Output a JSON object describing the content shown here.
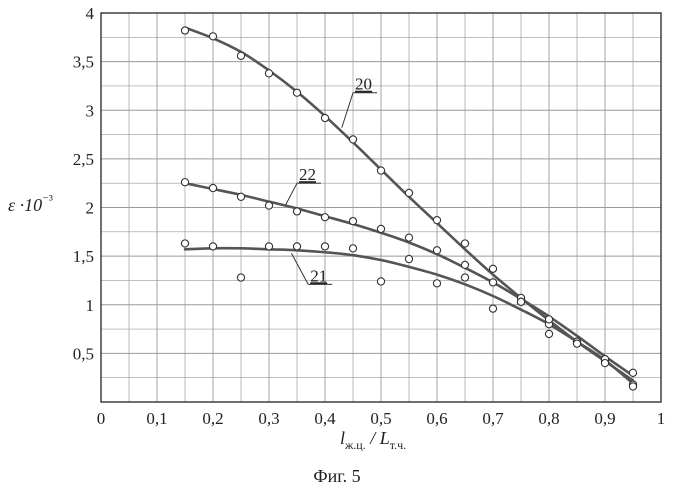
{
  "caption": "Фиг. 5",
  "chart_data": {
    "type": "scatter",
    "title": "",
    "ylabel": "ε ·10⁻³",
    "xlabel": "lж.ц. / Lт.ч.",
    "xlim": [
      0,
      1
    ],
    "ylim": [
      0,
      4
    ],
    "xticks": [
      "0",
      "0,1",
      "0,2",
      "0,3",
      "0,4",
      "0,5",
      "0,6",
      "0,7",
      "0,8",
      "0,9",
      "1"
    ],
    "yticks": [
      "0,5",
      "1",
      "1,5",
      "2",
      "2,5",
      "3",
      "3,5",
      "4"
    ],
    "grid": true,
    "series": [
      {
        "name": "20",
        "color": "#555555",
        "points": [
          [
            0.15,
            3.82
          ],
          [
            0.2,
            3.76
          ],
          [
            0.25,
            3.56
          ],
          [
            0.3,
            3.38
          ],
          [
            0.35,
            3.18
          ],
          [
            0.4,
            2.92
          ],
          [
            0.45,
            2.7
          ],
          [
            0.5,
            2.38
          ],
          [
            0.55,
            2.15
          ],
          [
            0.6,
            1.87
          ],
          [
            0.65,
            1.63
          ],
          [
            0.7,
            1.37
          ],
          [
            0.75,
            1.07
          ],
          [
            0.8,
            0.8
          ],
          [
            0.85,
            0.62
          ],
          [
            0.9,
            0.42
          ],
          [
            0.95,
            0.18
          ]
        ],
        "curve": [
          [
            0.15,
            3.85
          ],
          [
            0.2,
            3.74
          ],
          [
            0.25,
            3.6
          ],
          [
            0.3,
            3.41
          ],
          [
            0.35,
            3.19
          ],
          [
            0.4,
            2.94
          ],
          [
            0.45,
            2.67
          ],
          [
            0.5,
            2.39
          ],
          [
            0.55,
            2.11
          ],
          [
            0.6,
            1.84
          ],
          [
            0.65,
            1.57
          ],
          [
            0.7,
            1.31
          ],
          [
            0.75,
            1.07
          ],
          [
            0.8,
            0.84
          ],
          [
            0.85,
            0.62
          ],
          [
            0.9,
            0.42
          ],
          [
            0.95,
            0.22
          ]
        ]
      },
      {
        "name": "22",
        "color": "#555555",
        "points": [
          [
            0.15,
            2.26
          ],
          [
            0.2,
            2.2
          ],
          [
            0.25,
            2.11
          ],
          [
            0.3,
            2.02
          ],
          [
            0.35,
            1.96
          ],
          [
            0.4,
            1.9
          ],
          [
            0.45,
            1.86
          ],
          [
            0.5,
            1.78
          ],
          [
            0.55,
            1.69
          ],
          [
            0.6,
            1.56
          ],
          [
            0.65,
            1.41
          ],
          [
            0.7,
            1.23
          ],
          [
            0.75,
            1.03
          ],
          [
            0.8,
            0.85
          ],
          [
            0.85,
            0.62
          ],
          [
            0.9,
            0.44
          ],
          [
            0.95,
            0.3
          ]
        ],
        "curve": [
          [
            0.15,
            2.25
          ],
          [
            0.2,
            2.19
          ],
          [
            0.25,
            2.13
          ],
          [
            0.3,
            2.06
          ],
          [
            0.35,
            1.99
          ],
          [
            0.4,
            1.91
          ],
          [
            0.45,
            1.83
          ],
          [
            0.5,
            1.74
          ],
          [
            0.55,
            1.64
          ],
          [
            0.6,
            1.52
          ],
          [
            0.65,
            1.38
          ],
          [
            0.7,
            1.23
          ],
          [
            0.75,
            1.06
          ],
          [
            0.8,
            0.88
          ],
          [
            0.85,
            0.68
          ],
          [
            0.9,
            0.47
          ],
          [
            0.95,
            0.27
          ]
        ]
      },
      {
        "name": "21",
        "color": "#555555",
        "points": [
          [
            0.15,
            1.63
          ],
          [
            0.2,
            1.6
          ],
          [
            0.25,
            1.28
          ],
          [
            0.3,
            1.6
          ],
          [
            0.35,
            1.6
          ],
          [
            0.4,
            1.6
          ],
          [
            0.45,
            1.58
          ],
          [
            0.5,
            1.24
          ],
          [
            0.55,
            1.47
          ],
          [
            0.6,
            1.22
          ],
          [
            0.65,
            1.28
          ],
          [
            0.7,
            0.96
          ],
          [
            0.75,
            1.03
          ],
          [
            0.8,
            0.7
          ],
          [
            0.85,
            0.6
          ],
          [
            0.9,
            0.4
          ],
          [
            0.95,
            0.16
          ]
        ],
        "curve": [
          [
            0.15,
            1.57
          ],
          [
            0.2,
            1.58
          ],
          [
            0.25,
            1.58
          ],
          [
            0.3,
            1.57
          ],
          [
            0.35,
            1.56
          ],
          [
            0.4,
            1.54
          ],
          [
            0.45,
            1.51
          ],
          [
            0.5,
            1.46
          ],
          [
            0.55,
            1.39
          ],
          [
            0.6,
            1.31
          ],
          [
            0.65,
            1.21
          ],
          [
            0.7,
            1.09
          ],
          [
            0.75,
            0.95
          ],
          [
            0.8,
            0.8
          ],
          [
            0.85,
            0.62
          ],
          [
            0.9,
            0.43
          ],
          [
            0.95,
            0.19
          ]
        ]
      }
    ]
  }
}
